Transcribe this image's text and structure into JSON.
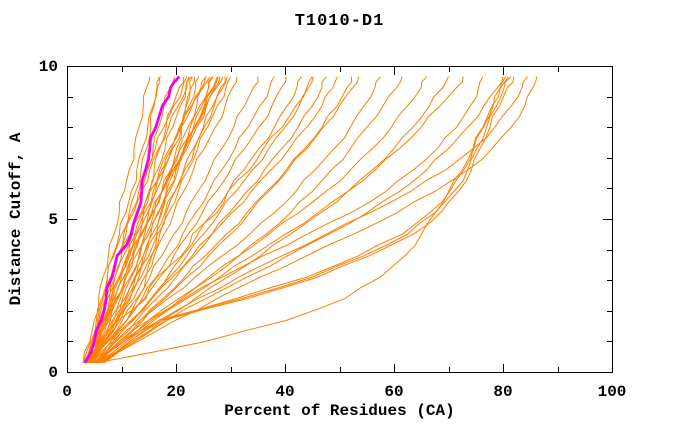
{
  "chart_data": {
    "type": "line",
    "title": "T1010-D1",
    "xlabel": "Percent of Residues (CA)",
    "ylabel": "Distance Cutoff, A",
    "xlim": [
      0,
      100
    ],
    "ylim": [
      0,
      10
    ],
    "grid": false,
    "legend": "none",
    "x_ticks": {
      "labeled_values": [
        0,
        20,
        40,
        60,
        80,
        100
      ],
      "labels": [
        "0",
        "20",
        "40",
        "60",
        "80",
        "100"
      ],
      "minor_step": 10
    },
    "y_ticks": {
      "labeled_values": [
        0,
        5,
        10
      ],
      "labels": [
        "0",
        "5",
        "10"
      ],
      "minor_step": 1
    },
    "colors": {
      "model_curves": "#ff7f00",
      "highlight_curve": "#f000f0",
      "axis": "#000000",
      "background": "#ffffff",
      "text": "#000000"
    },
    "cutoffs": [
      0.3,
      1.0,
      1.7,
      2.4,
      3.1,
      3.8,
      4.5,
      5.2,
      5.9,
      6.6,
      7.3,
      8.0,
      8.7,
      9.3,
      9.65
    ],
    "highlight_percent": [
      3.3,
      5.0,
      6.3,
      7.2,
      8.3,
      9.2,
      11.8,
      12.9,
      13.7,
      14.4,
      15.2,
      16.3,
      17.5,
      19.0,
      20.6
    ],
    "model_percent": [
      [
        3.0,
        4.2,
        5.0,
        5.8,
        6.6,
        7.6,
        8.6,
        9.6,
        10.5,
        11.4,
        12.3,
        13.2,
        14.0,
        14.6,
        15.2
      ],
      [
        3.4,
        4.6,
        5.6,
        6.6,
        7.4,
        8.4,
        9.6,
        10.8,
        11.8,
        12.8,
        13.8,
        14.8,
        15.8,
        16.6,
        17.2
      ],
      [
        3.8,
        5.4,
        6.6,
        7.8,
        8.8,
        10.0,
        11.5,
        12.7,
        13.8,
        14.8,
        15.8,
        16.8,
        17.8,
        19.0,
        19.8
      ],
      [
        4.2,
        6.0,
        7.4,
        8.6,
        10.0,
        11.4,
        12.8,
        14.0,
        15.0,
        16.0,
        17.0,
        18.2,
        19.4,
        20.6,
        21.4
      ],
      [
        3.2,
        5.2,
        6.8,
        8.2,
        9.6,
        11.0,
        12.4,
        13.8,
        15.2,
        16.6,
        18.0,
        19.4,
        20.8,
        21.8,
        22.4
      ],
      [
        4.6,
        6.4,
        8.0,
        9.4,
        10.8,
        12.2,
        13.6,
        15.0,
        16.4,
        17.8,
        19.2,
        20.6,
        21.8,
        22.8,
        23.4
      ],
      [
        3.6,
        5.8,
        7.6,
        9.2,
        10.6,
        12.0,
        13.4,
        14.8,
        16.2,
        17.8,
        19.4,
        21.0,
        22.4,
        23.6,
        24.2
      ],
      [
        4.0,
        6.2,
        8.4,
        10.2,
        11.8,
        13.2,
        14.6,
        16.0,
        17.4,
        19.0,
        20.6,
        22.2,
        23.8,
        24.8,
        25.4
      ],
      [
        4.4,
        6.8,
        9.0,
        11.0,
        12.6,
        14.0,
        15.4,
        16.8,
        18.4,
        20.0,
        21.6,
        23.2,
        24.8,
        26.0,
        26.6
      ],
      [
        3.4,
        5.6,
        7.8,
        9.8,
        11.6,
        13.4,
        15.0,
        16.6,
        18.2,
        19.8,
        21.6,
        23.4,
        25.2,
        26.8,
        27.6
      ],
      [
        4.8,
        7.2,
        9.4,
        11.4,
        13.2,
        15.0,
        16.6,
        18.2,
        19.8,
        21.4,
        23.2,
        25.0,
        26.8,
        28.2,
        29.0
      ],
      [
        3.8,
        6.6,
        9.2,
        11.6,
        13.6,
        15.4,
        17.0,
        18.6,
        20.4,
        22.2,
        24.0,
        25.8,
        27.6,
        29.2,
        30.0
      ],
      [
        4.2,
        7.0,
        9.8,
        12.2,
        14.2,
        16.0,
        17.8,
        19.6,
        21.4,
        23.2,
        25.2,
        27.2,
        29.0,
        30.4,
        31.2
      ],
      [
        5.5,
        8.5,
        11.0,
        13.0,
        14.5,
        15.6,
        16.5,
        17.4,
        18.3,
        19.2,
        20.1,
        21.0,
        21.9,
        22.6,
        23.0
      ],
      [
        4.0,
        5.5,
        6.8,
        8.0,
        9.5,
        11.5,
        13.5,
        15.5,
        17.5,
        19.5,
        21.5,
        23.5,
        25.5,
        27.5,
        28.6
      ],
      [
        3.6,
        5.0,
        6.2,
        7.4,
        8.8,
        10.4,
        12.0,
        13.6,
        15.2,
        17.0,
        18.8,
        20.8,
        22.8,
        24.6,
        25.6
      ],
      [
        4.4,
        6.0,
        7.2,
        8.4,
        9.8,
        11.2,
        12.6,
        14.2,
        15.8,
        17.4,
        19.2,
        21.0,
        23.0,
        25.0,
        26.2
      ],
      [
        3.0,
        4.4,
        5.4,
        6.4,
        7.4,
        8.6,
        10.0,
        11.4,
        12.6,
        13.6,
        14.6,
        15.4,
        16.0,
        16.5,
        16.8
      ],
      [
        3.2,
        4.8,
        6.0,
        7.0,
        8.0,
        9.2,
        10.4,
        11.8,
        13.2,
        14.6,
        16.2,
        17.8,
        19.6,
        21.2,
        22.0
      ],
      [
        4.6,
        6.6,
        8.6,
        10.6,
        12.4,
        14.0,
        15.6,
        17.2,
        18.8,
        20.4,
        22.0,
        23.8,
        25.6,
        27.2,
        28.0
      ],
      [
        3.0,
        5.0,
        7.0,
        9.0,
        10.8,
        12.6,
        14.2,
        15.8,
        17.4,
        19.0,
        20.8,
        22.6,
        24.4,
        26.0,
        26.8
      ],
      [
        5.0,
        7.0,
        9.0,
        10.8,
        12.6,
        14.4,
        16.2,
        18.0,
        19.8,
        21.6,
        23.4,
        25.2,
        27.0,
        28.6,
        29.4
      ],
      [
        3.4,
        4.6,
        5.8,
        7.0,
        8.2,
        9.4,
        10.8,
        12.2,
        13.6,
        15.2,
        16.8,
        18.6,
        20.4,
        22.0,
        22.8
      ],
      [
        4.0,
        5.6,
        7.2,
        8.8,
        10.4,
        12.0,
        13.8,
        15.6,
        17.4,
        19.4,
        21.4,
        23.4,
        25.4,
        27.0,
        27.8
      ],
      [
        4.6,
        7.4,
        10.2,
        12.8,
        15.2,
        17.4,
        19.6,
        21.8,
        24.0,
        26.2,
        28.4,
        30.6,
        32.6,
        34.2,
        35.0
      ],
      [
        5.0,
        8.0,
        11.0,
        13.8,
        16.4,
        18.8,
        21.2,
        23.6,
        26.0,
        28.4,
        30.8,
        33.2,
        35.4,
        37.2,
        38.0
      ],
      [
        4.2,
        7.6,
        11.0,
        14.2,
        17.0,
        19.6,
        22.2,
        24.8,
        27.4,
        30.0,
        32.6,
        35.2,
        37.6,
        39.4,
        40.2
      ],
      [
        5.4,
        8.8,
        12.2,
        15.4,
        18.4,
        21.2,
        24.0,
        26.8,
        29.6,
        32.4,
        35.2,
        38.0,
        40.4,
        42.2,
        43.0
      ],
      [
        4.8,
        8.4,
        12.0,
        15.4,
        18.8,
        22.0,
        25.0,
        28.0,
        31.0,
        34.0,
        37.0,
        40.0,
        42.6,
        44.4,
        45.2
      ],
      [
        5.2,
        9.0,
        12.8,
        16.4,
        20.0,
        23.4,
        26.6,
        29.8,
        33.0,
        36.2,
        39.4,
        42.4,
        45.0,
        46.8,
        47.6
      ],
      [
        4.4,
        8.0,
        11.8,
        15.6,
        19.4,
        23.0,
        26.6,
        30.2,
        33.8,
        37.4,
        40.8,
        44.0,
        46.8,
        48.8,
        49.6
      ],
      [
        5.6,
        9.6,
        13.6,
        17.6,
        21.6,
        25.4,
        29.2,
        33.0,
        36.6,
        40.2,
        43.6,
        46.8,
        49.6,
        51.4,
        52.2
      ],
      [
        4.0,
        6.0,
        9.5,
        14.5,
        16.5,
        21.0,
        23.0,
        27.5,
        29.5,
        33.5,
        36.0,
        39.5,
        42.0,
        44.0,
        45.0
      ],
      [
        6.0,
        10.0,
        14.0,
        18.0,
        22.0,
        26.0,
        30.0,
        33.5,
        37.0,
        40.5,
        44.0,
        47.0,
        50.0,
        52.5,
        53.5
      ],
      [
        5.0,
        9.0,
        13.5,
        18.5,
        23.5,
        28.5,
        33.5,
        38.0,
        42.0,
        45.5,
        49.0,
        52.0,
        54.5,
        56.5,
        57.5
      ],
      [
        5.8,
        10.5,
        15.5,
        21.0,
        26.5,
        31.5,
        36.5,
        41.0,
        45.0,
        48.5,
        52.0,
        55.0,
        58.0,
        60.5,
        61.5
      ],
      [
        5.2,
        10.0,
        15.0,
        20.5,
        26.0,
        31.5,
        37.0,
        42.5,
        47.5,
        52.0,
        56.0,
        59.5,
        62.5,
        65.0,
        66.0
      ],
      [
        6.2,
        11.5,
        17.5,
        23.5,
        29.5,
        35.5,
        41.0,
        46.5,
        51.5,
        56.0,
        60.0,
        63.5,
        66.5,
        69.0,
        70.0
      ],
      [
        5.4,
        10.5,
        16.0,
        22.0,
        28.0,
        34.0,
        40.0,
        46.0,
        51.5,
        56.5,
        61.0,
        65.0,
        68.5,
        71.5,
        72.7
      ],
      [
        5.0,
        9.5,
        15.0,
        21.5,
        28.5,
        36.0,
        44.0,
        52.0,
        58.5,
        63.5,
        68.0,
        71.5,
        74.0,
        75.5,
        76.3
      ],
      [
        6.5,
        12.0,
        18.5,
        25.5,
        33.0,
        40.5,
        48.0,
        55.0,
        61.0,
        66.0,
        70.0,
        73.5,
        76.5,
        79.0,
        80.0
      ],
      [
        5.6,
        11.0,
        17.0,
        24.0,
        31.5,
        39.5,
        47.5,
        55.5,
        63.0,
        69.5,
        74.5,
        78.5,
        81.5,
        83.5,
        84.5
      ],
      [
        6.8,
        13.0,
        20.0,
        27.5,
        35.5,
        44.0,
        52.5,
        60.5,
        67.5,
        73.5,
        78.0,
        81.5,
        84.0,
        85.5,
        86.2
      ],
      [
        6.0,
        12.0,
        17.5,
        32.0,
        45.0,
        54.5,
        62.5,
        67.5,
        71.0,
        73.5,
        75.2,
        77.0,
        78.8,
        80.2,
        81.5
      ],
      [
        5.5,
        11.5,
        17.0,
        31.0,
        44.0,
        53.5,
        61.5,
        66.5,
        70.2,
        72.8,
        74.6,
        76.4,
        78.2,
        79.6,
        81.0
      ],
      [
        6.5,
        12.5,
        18.0,
        33.0,
        46.0,
        55.5,
        63.5,
        68.5,
        71.8,
        74.2,
        75.8,
        77.6,
        79.4,
        80.8,
        82.0
      ],
      [
        5.5,
        25.5,
        40.5,
        51.0,
        57.5,
        62.0,
        65.0,
        67.5,
        70.0,
        72.5,
        74.5,
        76.3,
        78.0,
        79.5,
        80.5
      ]
    ]
  }
}
